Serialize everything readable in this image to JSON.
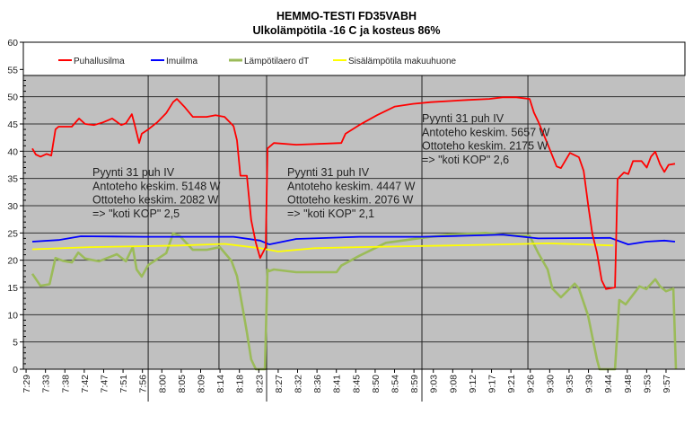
{
  "chart_data": {
    "type": "line",
    "title": "HEMMO-TESTI FD35VABH",
    "subtitle": "Ulkolämpötila -16 C ja kosteus 86%",
    "xlabel": "",
    "ylabel": "",
    "x_unit": "minutes after 7:29 (approx.)",
    "xlim": [
      -2.1,
      152.1
    ],
    "ylim": [
      0,
      60
    ],
    "y_ticks": [
      0,
      5,
      10,
      15,
      20,
      25,
      30,
      35,
      40,
      45,
      50,
      55,
      60
    ],
    "grid": true,
    "legend_position": "top",
    "x_tick_first": -1.46,
    "x_tick_step": 4.52,
    "x_tick_labels": [
      "7:29",
      "7:33",
      "7:38",
      "7:42",
      "7:47",
      "7:51",
      "7:56",
      "8:00",
      "8:05",
      "8:09",
      "8:14",
      "8:18",
      "8:23",
      "8:27",
      "8:32",
      "8:36",
      "8:41",
      "8:45",
      "8:50",
      "8:54",
      "8:59",
      "9:03",
      "9:08",
      "9:12",
      "9:17",
      "9:21",
      "9:26",
      "9:30",
      "9:35",
      "9:39",
      "9:44",
      "9:48",
      "9:53",
      "9:57"
    ],
    "markers": [
      27,
      43.5,
      54.6,
      90.8,
      115.5
    ],
    "series": [
      {
        "name": "Puhallusilma",
        "color": "#ff0000",
        "points": [
          [
            0,
            40.5
          ],
          [
            0.8,
            39.4
          ],
          [
            1.9,
            39
          ],
          [
            3.3,
            39.5
          ],
          [
            4.4,
            39.2
          ],
          [
            5.4,
            44
          ],
          [
            6.1,
            44.5
          ],
          [
            9.2,
            44.5
          ],
          [
            10.3,
            45.5
          ],
          [
            10.9,
            46
          ],
          [
            12.3,
            45
          ],
          [
            14.4,
            44.8
          ],
          [
            16.5,
            45.3
          ],
          [
            18.6,
            46
          ],
          [
            20.7,
            44.8
          ],
          [
            21.8,
            45.1
          ],
          [
            23.2,
            46.8
          ],
          [
            23.8,
            45
          ],
          [
            24.9,
            41.5
          ],
          [
            25.5,
            43.2
          ],
          [
            27,
            44
          ],
          [
            29.1,
            45.3
          ],
          [
            31.2,
            47
          ],
          [
            32.8,
            49
          ],
          [
            33.7,
            49.6
          ],
          [
            35.4,
            48.2
          ],
          [
            37.4,
            46.3
          ],
          [
            40.6,
            46.3
          ],
          [
            42.7,
            46.6
          ],
          [
            44.8,
            46.3
          ],
          [
            46.9,
            44.6
          ],
          [
            47.7,
            42
          ],
          [
            48.5,
            35.5
          ],
          [
            50,
            35.5
          ],
          [
            51,
            27.4
          ],
          [
            52.1,
            23.2
          ],
          [
            53.1,
            20.4
          ],
          [
            54.4,
            22.4
          ],
          [
            54.8,
            40.5
          ],
          [
            56.3,
            41.5
          ],
          [
            61.5,
            41.2
          ],
          [
            72,
            41.5
          ],
          [
            73,
            43.2
          ],
          [
            76.2,
            44.8
          ],
          [
            80.3,
            46.6
          ],
          [
            84.5,
            48.2
          ],
          [
            88.7,
            48.7
          ],
          [
            92.9,
            49
          ],
          [
            101.3,
            49.4
          ],
          [
            106.5,
            49.6
          ],
          [
            109.6,
            49.9
          ],
          [
            112.8,
            49.9
          ],
          [
            115.9,
            49.6
          ],
          [
            116.9,
            47.1
          ],
          [
            118,
            45.3
          ],
          [
            120,
            41.5
          ],
          [
            122.2,
            37.2
          ],
          [
            123.2,
            36.9
          ],
          [
            125.3,
            39.7
          ],
          [
            127.4,
            38.9
          ],
          [
            128.5,
            36.4
          ],
          [
            129.6,
            29.8
          ],
          [
            130.5,
            24.9
          ],
          [
            131.6,
            21.4
          ],
          [
            132.7,
            16.3
          ],
          [
            133.7,
            14.7
          ],
          [
            135.8,
            15
          ],
          [
            136.4,
            34.9
          ],
          [
            137.9,
            36.1
          ],
          [
            138.9,
            35.8
          ],
          [
            140,
            38.2
          ],
          [
            142,
            38.2
          ],
          [
            143.2,
            37
          ],
          [
            144.2,
            39
          ],
          [
            145.2,
            39.9
          ],
          [
            146.3,
            37.6
          ],
          [
            147.3,
            36.2
          ],
          [
            148.3,
            37.5
          ],
          [
            149.8,
            37.7
          ]
        ]
      },
      {
        "name": "Imuilma",
        "color": "#0000ff",
        "points": [
          [
            0,
            23.4
          ],
          [
            6.1,
            23.7
          ],
          [
            11.3,
            24.4
          ],
          [
            25.9,
            24.3
          ],
          [
            34.5,
            24.3
          ],
          [
            46.9,
            24.3
          ],
          [
            53.1,
            23.6
          ],
          [
            55.2,
            22.9
          ],
          [
            61.5,
            23.9
          ],
          [
            76.2,
            24.3
          ],
          [
            90.8,
            24.3
          ],
          [
            101.3,
            24.5
          ],
          [
            109.6,
            24.7
          ],
          [
            117.9,
            24
          ],
          [
            134.7,
            24.1
          ],
          [
            138.9,
            22.9
          ],
          [
            143.1,
            23.4
          ],
          [
            147.3,
            23.6
          ],
          [
            149.8,
            23.4
          ]
        ]
      },
      {
        "name": "Lämpötilaero dT",
        "color": "#9bbb59",
        "points": [
          [
            0,
            17.5
          ],
          [
            1.9,
            15.3
          ],
          [
            4,
            15.6
          ],
          [
            5.4,
            20.4
          ],
          [
            7.1,
            19.9
          ],
          [
            9.2,
            19.6
          ],
          [
            10.7,
            21.4
          ],
          [
            12.3,
            20.3
          ],
          [
            15.5,
            19.8
          ],
          [
            19.7,
            21.1
          ],
          [
            21.8,
            19.8
          ],
          [
            23.4,
            22.4
          ],
          [
            24.3,
            18.3
          ],
          [
            25.5,
            17
          ],
          [
            27,
            19.1
          ],
          [
            31.2,
            21.3
          ],
          [
            32.8,
            24.9
          ],
          [
            34.3,
            24.5
          ],
          [
            37.4,
            21.9
          ],
          [
            40.6,
            21.9
          ],
          [
            43.7,
            22.4
          ],
          [
            46.4,
            19.9
          ],
          [
            47.7,
            17.1
          ],
          [
            48.9,
            11.7
          ],
          [
            50,
            6.8
          ],
          [
            51,
            1.8
          ],
          [
            52.1,
            0
          ],
          [
            54.2,
            0
          ],
          [
            54.8,
            18.3
          ],
          [
            55.2,
            18
          ],
          [
            56.3,
            18.3
          ],
          [
            61.5,
            17.8
          ],
          [
            70.9,
            17.8
          ],
          [
            72,
            19
          ],
          [
            76.2,
            20.8
          ],
          [
            82.4,
            23.2
          ],
          [
            90.8,
            24.1
          ],
          [
            97.1,
            24.7
          ],
          [
            103.4,
            24.9
          ],
          [
            105.5,
            25
          ],
          [
            109.6,
            24.7
          ],
          [
            113.8,
            24.5
          ],
          [
            115.9,
            24.5
          ],
          [
            118,
            21.2
          ],
          [
            120.1,
            18.3
          ],
          [
            121.2,
            14.8
          ],
          [
            123.2,
            13.2
          ],
          [
            126.4,
            15.7
          ],
          [
            127.4,
            14.8
          ],
          [
            129.5,
            9.9
          ],
          [
            131.6,
            1.8
          ],
          [
            132.2,
            0
          ],
          [
            135.8,
            0
          ],
          [
            136.8,
            12.7
          ],
          [
            138.3,
            11.9
          ],
          [
            141.5,
            15.2
          ],
          [
            143.1,
            14.7
          ],
          [
            145.2,
            16.5
          ],
          [
            146.3,
            15.2
          ],
          [
            147.7,
            14.3
          ],
          [
            149.4,
            14.8
          ],
          [
            150,
            0
          ]
        ]
      },
      {
        "name": "Sisälämpötila makuuhuone",
        "color": "#ffff00",
        "points": [
          [
            0,
            22
          ],
          [
            13.4,
            22.4
          ],
          [
            34.3,
            22.7
          ],
          [
            44.8,
            23
          ],
          [
            53.1,
            22.2
          ],
          [
            57.3,
            21.6
          ],
          [
            65.7,
            22.2
          ],
          [
            76.2,
            22.4
          ],
          [
            97.1,
            22.7
          ],
          [
            109.6,
            22.9
          ],
          [
            120.1,
            23.1
          ],
          [
            128.5,
            22.9
          ],
          [
            135.4,
            22.7
          ]
        ]
      }
    ],
    "annotations": [
      {
        "lines": [
          "Pyynti 31 puh IV",
          "Antoteho keskim. 5148 W",
          "Ottoteho keskim. 2082 W",
          "=> \"koti KOP\" 2,5"
        ]
      },
      {
        "lines": [
          "Pyynti 31 puh IV",
          "Antoteho keskim. 4447 W",
          "Ottoteho keskim. 2076 W",
          "=> \"koti KOP\" 2,1"
        ]
      },
      {
        "lines": [
          "Pyynti 31 puh IV",
          "Antoteho keskim. 5657 W",
          "Ottoteho keskim. 2175 W",
          "=> \"koti KOP\" 2,6"
        ]
      }
    ]
  }
}
